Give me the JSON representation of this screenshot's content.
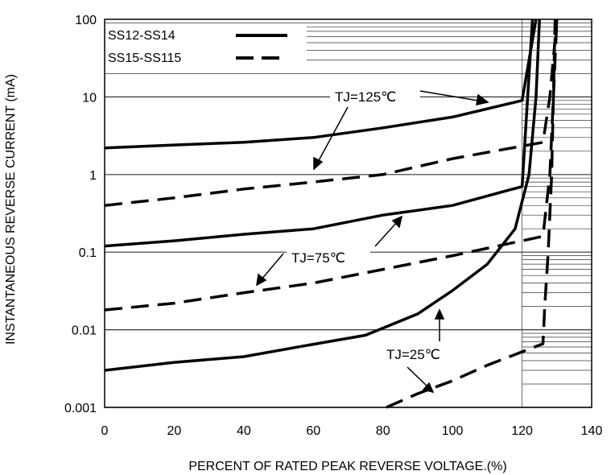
{
  "chart_data": {
    "type": "line",
    "xlabel": "PERCENT OF RATED PEAK REVERSE VOLTAGE.(%)",
    "ylabel": "INSTANTANEOUS REVERSE CURRENT (mA)",
    "xlim": [
      0,
      140
    ],
    "ylim": [
      0.001,
      100
    ],
    "yscale": "log",
    "x_ticks": [
      "0",
      "20",
      "40",
      "60",
      "80",
      "100",
      "120",
      "140"
    ],
    "y_ticks": [
      "0.001",
      "0.01",
      "0.1",
      "1",
      "10",
      "100"
    ],
    "grid": "log-minor horizontal lines between 120% and 140% and in the legend area",
    "legend": {
      "position": "top-left",
      "items": [
        {
          "label": "SS12-SS14",
          "style": "solid"
        },
        {
          "label": "SS15-SS115",
          "style": "dashed"
        }
      ]
    },
    "annotations": [
      "TJ=125℃",
      "TJ=75℃",
      "TJ=25℃"
    ],
    "series": [
      {
        "group": "SS12-SS14",
        "condition": "TJ=125℃",
        "style": "solid",
        "points": [
          [
            0,
            2.2
          ],
          [
            20,
            2.4
          ],
          [
            40,
            2.6
          ],
          [
            60,
            3.0
          ],
          [
            80,
            4.0
          ],
          [
            100,
            5.5
          ],
          [
            120,
            9.0
          ],
          [
            124,
            100
          ]
        ]
      },
      {
        "group": "SS12-SS14",
        "condition": "TJ=75℃",
        "style": "solid",
        "points": [
          [
            0,
            0.12
          ],
          [
            20,
            0.14
          ],
          [
            40,
            0.17
          ],
          [
            60,
            0.2
          ],
          [
            80,
            0.3
          ],
          [
            100,
            0.4
          ],
          [
            120,
            0.7
          ],
          [
            123,
            100
          ]
        ]
      },
      {
        "group": "SS12-SS14",
        "condition": "TJ=25℃",
        "style": "solid",
        "points": [
          [
            0,
            0.003
          ],
          [
            20,
            0.0038
          ],
          [
            40,
            0.0045
          ],
          [
            60,
            0.0065
          ],
          [
            75,
            0.0085
          ],
          [
            90,
            0.016
          ],
          [
            100,
            0.032
          ],
          [
            110,
            0.07
          ],
          [
            118,
            0.2
          ],
          [
            122,
            1
          ],
          [
            124,
            10
          ],
          [
            125,
            100
          ]
        ]
      },
      {
        "group": "SS15-SS115",
        "condition": "TJ=125℃",
        "style": "dashed",
        "points": [
          [
            0,
            0.4
          ],
          [
            20,
            0.5
          ],
          [
            40,
            0.65
          ],
          [
            60,
            0.8
          ],
          [
            80,
            1.0
          ],
          [
            100,
            1.6
          ],
          [
            126,
            2.6
          ],
          [
            128,
            10
          ],
          [
            130,
            100
          ]
        ]
      },
      {
        "group": "SS15-SS115",
        "condition": "TJ=75℃",
        "style": "dashed",
        "points": [
          [
            0,
            0.018
          ],
          [
            20,
            0.022
          ],
          [
            40,
            0.03
          ],
          [
            60,
            0.04
          ],
          [
            80,
            0.06
          ],
          [
            100,
            0.09
          ],
          [
            126,
            0.16
          ],
          [
            128,
            1
          ],
          [
            129,
            10
          ],
          [
            130,
            100
          ]
        ]
      },
      {
        "group": "SS15-SS115",
        "condition": "TJ=25℃",
        "style": "dashed",
        "points": [
          [
            81,
            0.001
          ],
          [
            90,
            0.0015
          ],
          [
            100,
            0.0022
          ],
          [
            110,
            0.0035
          ],
          [
            126,
            0.0066
          ],
          [
            126.5,
            0.02
          ],
          [
            127.5,
            0.1
          ],
          [
            128.5,
            1
          ],
          [
            129,
            10
          ],
          [
            129.5,
            100
          ]
        ]
      }
    ]
  }
}
